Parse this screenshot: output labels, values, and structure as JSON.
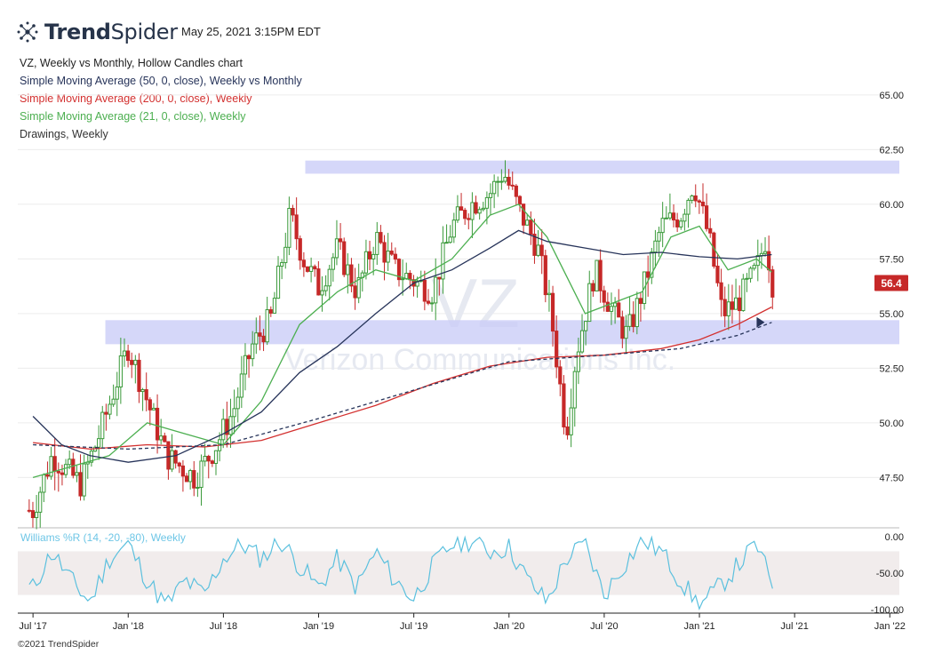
{
  "header": {
    "brand_bold": "Trend",
    "brand_light": "Spider",
    "timestamp": "May 25, 2021 3:15PM EDT"
  },
  "legend": {
    "main": "VZ, Weekly vs Monthly, Hollow Candles chart",
    "sma50": "Simple Moving Average (50, 0, close), Weekly vs Monthly",
    "sma200": "Simple Moving Average (200, 0, close), Weekly",
    "sma21": "Simple Moving Average (21, 0, close), Weekly",
    "drawings": "Drawings, Weekly"
  },
  "colors": {
    "sma50": "#27345a",
    "sma200": "#d3302f",
    "sma21": "#4caf50",
    "drawings": "#333333",
    "candle_up": "#3a9a3a",
    "candle_down": "#c62828",
    "zone": "#c9ccf7",
    "williams": "#5bc0de",
    "price_badge": "#c62828"
  },
  "watermark": {
    "ticker": "VZ",
    "company": "Verizon Communications Inc."
  },
  "footer": {
    "copyright": "©2021 TrendSpider"
  },
  "chart_data": {
    "type": "candlestick",
    "ticker": "VZ",
    "timeframe": "Weekly",
    "current_price": "56.4",
    "ylim": [
      45.2,
      66.5
    ],
    "y_ticks": [
      "65.00",
      "62.50",
      "60.00",
      "57.50",
      "55.00",
      "52.50",
      "50.00",
      "47.50"
    ],
    "x_ticks": [
      "Jul '17",
      "Jan '18",
      "Jul '18",
      "Jan '19",
      "Jul '19",
      "Jan '20",
      "Jul '20",
      "Jan '21",
      "Jul '21",
      "Jan '22"
    ],
    "zones": [
      {
        "name": "resistance",
        "low": 61.4,
        "high": 62.0
      },
      {
        "name": "support",
        "low": 53.6,
        "high": 54.7
      }
    ],
    "close_path": [
      {
        "t": 2017.5,
        "v": 46.0
      },
      {
        "t": 2017.6,
        "v": 48.5
      },
      {
        "t": 2017.75,
        "v": 47.2
      },
      {
        "t": 2017.85,
        "v": 49.5
      },
      {
        "t": 2018.0,
        "v": 53.5
      },
      {
        "t": 2018.1,
        "v": 51.0
      },
      {
        "t": 2018.2,
        "v": 48.5
      },
      {
        "t": 2018.35,
        "v": 47.5
      },
      {
        "t": 2018.45,
        "v": 48.8
      },
      {
        "t": 2018.55,
        "v": 50.5
      },
      {
        "t": 2018.65,
        "v": 53.5
      },
      {
        "t": 2018.75,
        "v": 54.8
      },
      {
        "t": 2018.85,
        "v": 59.5
      },
      {
        "t": 2018.92,
        "v": 57.5
      },
      {
        "t": 2019.0,
        "v": 56.2
      },
      {
        "t": 2019.1,
        "v": 58.0
      },
      {
        "t": 2019.2,
        "v": 56.0
      },
      {
        "t": 2019.3,
        "v": 58.5
      },
      {
        "t": 2019.4,
        "v": 57.0
      },
      {
        "t": 2019.5,
        "v": 56.5
      },
      {
        "t": 2019.6,
        "v": 56.0
      },
      {
        "t": 2019.7,
        "v": 59.0
      },
      {
        "t": 2019.8,
        "v": 60.0
      },
      {
        "t": 2019.9,
        "v": 60.5
      },
      {
        "t": 2019.97,
        "v": 61.5
      },
      {
        "t": 2020.05,
        "v": 59.8
      },
      {
        "t": 2020.15,
        "v": 58.0
      },
      {
        "t": 2020.22,
        "v": 55.0
      },
      {
        "t": 2020.3,
        "v": 49.5
      },
      {
        "t": 2020.35,
        "v": 53.0
      },
      {
        "t": 2020.45,
        "v": 57.0
      },
      {
        "t": 2020.55,
        "v": 55.0
      },
      {
        "t": 2020.62,
        "v": 54.0
      },
      {
        "t": 2020.7,
        "v": 56.0
      },
      {
        "t": 2020.8,
        "v": 59.0
      },
      {
        "t": 2020.9,
        "v": 59.5
      },
      {
        "t": 2020.97,
        "v": 61.0
      },
      {
        "t": 2021.05,
        "v": 58.5
      },
      {
        "t": 2021.12,
        "v": 55.0
      },
      {
        "t": 2021.2,
        "v": 55.5
      },
      {
        "t": 2021.3,
        "v": 57.0
      },
      {
        "t": 2021.35,
        "v": 58.5
      },
      {
        "t": 2021.38,
        "v": 56.4
      }
    ],
    "sma50_path": [
      {
        "t": 2017.5,
        "v": 50.3
      },
      {
        "t": 2017.65,
        "v": 49.0
      },
      {
        "t": 2017.8,
        "v": 48.5
      },
      {
        "t": 2018.0,
        "v": 48.2
      },
      {
        "t": 2018.25,
        "v": 48.5
      },
      {
        "t": 2018.5,
        "v": 49.5
      },
      {
        "t": 2018.7,
        "v": 50.5
      },
      {
        "t": 2018.9,
        "v": 52.3
      },
      {
        "t": 2019.1,
        "v": 53.5
      },
      {
        "t": 2019.3,
        "v": 55.0
      },
      {
        "t": 2019.5,
        "v": 56.4
      },
      {
        "t": 2019.7,
        "v": 57.0
      },
      {
        "t": 2019.9,
        "v": 58.0
      },
      {
        "t": 2020.05,
        "v": 58.8
      },
      {
        "t": 2020.2,
        "v": 58.3
      },
      {
        "t": 2020.4,
        "v": 58.0
      },
      {
        "t": 2020.6,
        "v": 57.7
      },
      {
        "t": 2020.8,
        "v": 57.8
      },
      {
        "t": 2021.0,
        "v": 57.6
      },
      {
        "t": 2021.2,
        "v": 57.5
      },
      {
        "t": 2021.38,
        "v": 57.7
      }
    ],
    "sma200_path": [
      {
        "t": 2017.5,
        "v": 49.1
      },
      {
        "t": 2017.8,
        "v": 48.8
      },
      {
        "t": 2018.1,
        "v": 49.0
      },
      {
        "t": 2018.4,
        "v": 48.9
      },
      {
        "t": 2018.7,
        "v": 49.2
      },
      {
        "t": 2019.0,
        "v": 50.0
      },
      {
        "t": 2019.3,
        "v": 50.8
      },
      {
        "t": 2019.6,
        "v": 51.8
      },
      {
        "t": 2019.9,
        "v": 52.6
      },
      {
        "t": 2020.2,
        "v": 53.0
      },
      {
        "t": 2020.5,
        "v": 53.1
      },
      {
        "t": 2020.8,
        "v": 53.4
      },
      {
        "t": 2021.0,
        "v": 53.8
      },
      {
        "t": 2021.2,
        "v": 54.5
      },
      {
        "t": 2021.38,
        "v": 55.3
      }
    ],
    "sma21_path": [
      {
        "t": 2017.5,
        "v": 47.5
      },
      {
        "t": 2017.7,
        "v": 48.0
      },
      {
        "t": 2017.9,
        "v": 48.5
      },
      {
        "t": 2018.1,
        "v": 50.0
      },
      {
        "t": 2018.3,
        "v": 49.5
      },
      {
        "t": 2018.5,
        "v": 49.0
      },
      {
        "t": 2018.7,
        "v": 51.0
      },
      {
        "t": 2018.9,
        "v": 54.5
      },
      {
        "t": 2019.1,
        "v": 56.0
      },
      {
        "t": 2019.3,
        "v": 57.0
      },
      {
        "t": 2019.5,
        "v": 56.5
      },
      {
        "t": 2019.7,
        "v": 57.5
      },
      {
        "t": 2019.9,
        "v": 59.5
      },
      {
        "t": 2020.05,
        "v": 60.0
      },
      {
        "t": 2020.2,
        "v": 58.5
      },
      {
        "t": 2020.4,
        "v": 55.0
      },
      {
        "t": 2020.55,
        "v": 55.5
      },
      {
        "t": 2020.7,
        "v": 56.0
      },
      {
        "t": 2020.85,
        "v": 58.5
      },
      {
        "t": 2021.0,
        "v": 59.0
      },
      {
        "t": 2021.15,
        "v": 57.0
      },
      {
        "t": 2021.3,
        "v": 57.5
      },
      {
        "t": 2021.38,
        "v": 56.9
      }
    ],
    "monthly_sma_dashed_path": [
      {
        "t": 2017.5,
        "v": 49.0
      },
      {
        "t": 2018.0,
        "v": 48.8
      },
      {
        "t": 2018.5,
        "v": 49.0
      },
      {
        "t": 2019.0,
        "v": 50.2
      },
      {
        "t": 2019.5,
        "v": 51.5
      },
      {
        "t": 2020.0,
        "v": 52.8
      },
      {
        "t": 2020.5,
        "v": 53.1
      },
      {
        "t": 2020.9,
        "v": 53.4
      },
      {
        "t": 2021.2,
        "v": 54.0
      },
      {
        "t": 2021.38,
        "v": 54.6
      }
    ],
    "williams_r": {
      "label": "Williams %R (14, -20, -80), Weekly",
      "ylim": [
        -100,
        0
      ],
      "y_ticks": [
        "0.00",
        "-50.00",
        "-100.00"
      ],
      "band": [
        -80,
        -20
      ],
      "path": [
        {
          "t": 2017.5,
          "v": -70
        },
        {
          "t": 2017.6,
          "v": -20
        },
        {
          "t": 2017.7,
          "v": -60
        },
        {
          "t": 2017.8,
          "v": -90
        },
        {
          "t": 2017.9,
          "v": -30
        },
        {
          "t": 2018.0,
          "v": -10
        },
        {
          "t": 2018.1,
          "v": -60
        },
        {
          "t": 2018.2,
          "v": -95
        },
        {
          "t": 2018.3,
          "v": -60
        },
        {
          "t": 2018.4,
          "v": -80
        },
        {
          "t": 2018.5,
          "v": -30
        },
        {
          "t": 2018.6,
          "v": -10
        },
        {
          "t": 2018.7,
          "v": -30
        },
        {
          "t": 2018.8,
          "v": -5
        },
        {
          "t": 2018.9,
          "v": -40
        },
        {
          "t": 2019.0,
          "v": -70
        },
        {
          "t": 2019.1,
          "v": -30
        },
        {
          "t": 2019.2,
          "v": -70
        },
        {
          "t": 2019.3,
          "v": -20
        },
        {
          "t": 2019.4,
          "v": -60
        },
        {
          "t": 2019.5,
          "v": -85
        },
        {
          "t": 2019.6,
          "v": -40
        },
        {
          "t": 2019.7,
          "v": -10
        },
        {
          "t": 2019.8,
          "v": -5
        },
        {
          "t": 2019.9,
          "v": -20
        },
        {
          "t": 2020.0,
          "v": -15
        },
        {
          "t": 2020.1,
          "v": -60
        },
        {
          "t": 2020.2,
          "v": -90
        },
        {
          "t": 2020.3,
          "v": -30
        },
        {
          "t": 2020.4,
          "v": -10
        },
        {
          "t": 2020.5,
          "v": -80
        },
        {
          "t": 2020.6,
          "v": -40
        },
        {
          "t": 2020.7,
          "v": -5
        },
        {
          "t": 2020.8,
          "v": -20
        },
        {
          "t": 2020.9,
          "v": -60
        },
        {
          "t": 2021.0,
          "v": -95
        },
        {
          "t": 2021.1,
          "v": -70
        },
        {
          "t": 2021.2,
          "v": -40
        },
        {
          "t": 2021.3,
          "v": -10
        },
        {
          "t": 2021.38,
          "v": -65
        }
      ]
    }
  }
}
